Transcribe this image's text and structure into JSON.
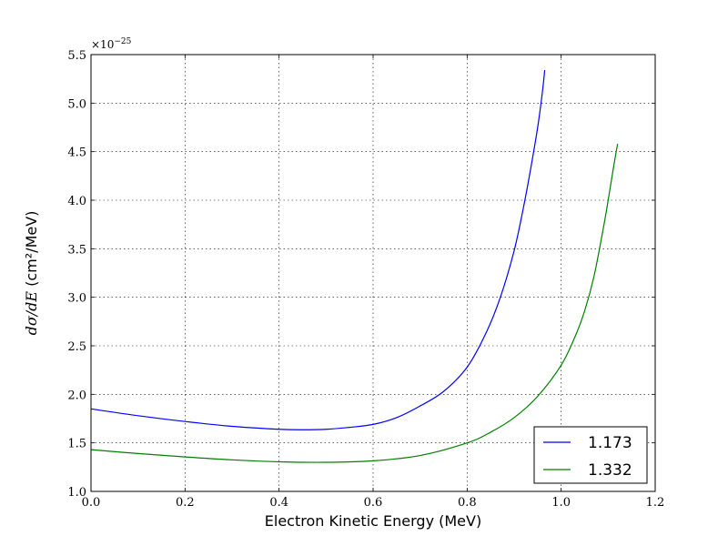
{
  "chart_data": {
    "type": "line",
    "title": "",
    "xlabel": "Electron Kinetic Energy (MeV)",
    "ylabel_math": "dσ/dE",
    "ylabel_units": " (cm²/MeV)",
    "y_offset_base": "×10",
    "y_offset_exp": "−25",
    "xlim": [
      0.0,
      1.2
    ],
    "ylim": [
      1.0,
      5.5
    ],
    "xticks": [
      0.0,
      0.2,
      0.4,
      0.6,
      0.8,
      1.0,
      1.2
    ],
    "xtick_labels": [
      "0.0",
      "0.2",
      "0.4",
      "0.6",
      "0.8",
      "1.0",
      "1.2"
    ],
    "yticks": [
      1.0,
      1.5,
      2.0,
      2.5,
      3.0,
      3.5,
      4.0,
      4.5,
      5.0,
      5.5
    ],
    "ytick_labels": [
      "1.0",
      "1.5",
      "2.0",
      "2.5",
      "3.0",
      "3.5",
      "4.0",
      "4.5",
      "5.0",
      "5.5"
    ],
    "grid": true,
    "legend_position": "bottom-right",
    "series": [
      {
        "name": "1.173",
        "color": "#0000ff",
        "x": [
          0.0,
          0.1,
          0.2,
          0.3,
          0.4,
          0.45,
          0.5,
          0.55,
          0.6,
          0.65,
          0.7,
          0.75,
          0.8,
          0.84,
          0.87,
          0.9,
          0.92,
          0.935,
          0.95,
          0.96,
          0.965
        ],
        "y": [
          1.85,
          1.78,
          1.72,
          1.67,
          1.64,
          1.635,
          1.64,
          1.66,
          1.69,
          1.76,
          1.88,
          2.03,
          2.28,
          2.63,
          2.99,
          3.48,
          3.93,
          4.32,
          4.75,
          5.11,
          5.34
        ]
      },
      {
        "name": "1.332",
        "color": "#008000",
        "x": [
          0.0,
          0.1,
          0.2,
          0.3,
          0.4,
          0.5,
          0.6,
          0.7,
          0.8,
          0.85,
          0.9,
          0.95,
          1.0,
          1.03,
          1.05,
          1.07,
          1.09,
          1.1,
          1.11,
          1.12
        ],
        "y": [
          1.43,
          1.39,
          1.355,
          1.325,
          1.305,
          1.3,
          1.315,
          1.37,
          1.5,
          1.61,
          1.76,
          1.98,
          2.3,
          2.6,
          2.86,
          3.22,
          3.72,
          4.0,
          4.3,
          4.58
        ]
      }
    ]
  }
}
